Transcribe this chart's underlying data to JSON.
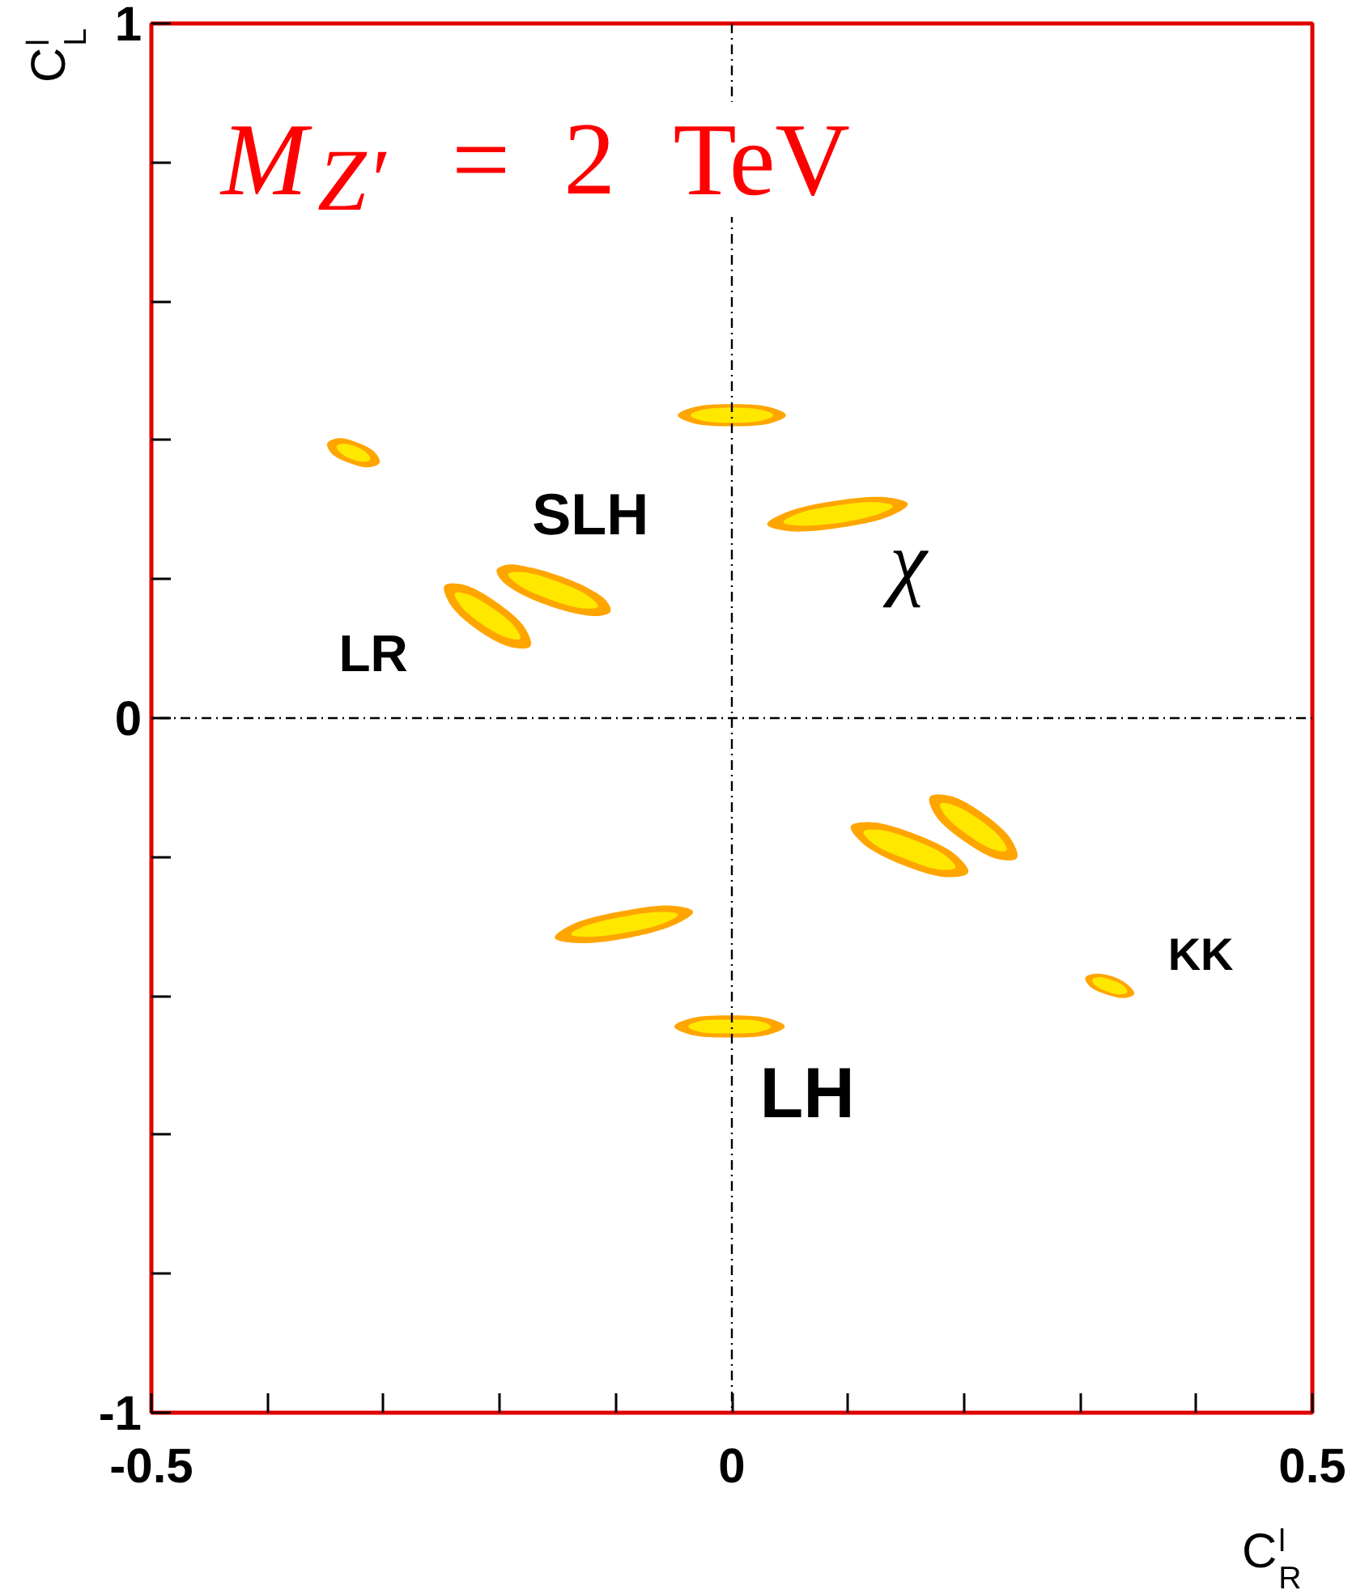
{
  "chart_data": {
    "type": "area",
    "title": "M$_{Z′}$ = 2 TeV",
    "xlabel": "C$^{l}$$_{R}$",
    "ylabel": "C$^{l}$$_{L}$",
    "xlim": [
      -0.5,
      0.5
    ],
    "ylim": [
      -1,
      1
    ],
    "xticks": [
      -0.5,
      {
        "value": -0.4,
        "label": null
      },
      {
        "value": -0.3,
        "label": null
      },
      {
        "value": -0.2,
        "label": null
      },
      {
        "value": -0.1,
        "label": null
      },
      0,
      {
        "value": 0.1,
        "label": null
      },
      {
        "value": 0.2,
        "label": null
      },
      {
        "value": 0.3,
        "label": null
      },
      {
        "value": 0.4,
        "label": null
      },
      0.5
    ],
    "yticks": [
      -1,
      {
        "value": -0.8,
        "label": null
      },
      {
        "value": -0.6,
        "label": null
      },
      {
        "value": -0.4,
        "label": null
      },
      {
        "value": -0.2,
        "label": null
      },
      0,
      {
        "value": 0.2,
        "label": null
      },
      {
        "value": 0.4,
        "label": null
      },
      {
        "value": 0.6,
        "label": null
      },
      {
        "value": 0.8,
        "label": null
      },
      1
    ],
    "ref_lines": [
      {
        "axis": "x",
        "value": 0,
        "color": "#000000",
        "line_style": "dashdot"
      },
      {
        "axis": "y",
        "value": 0,
        "color": "#000000",
        "line_style": "dashdot"
      }
    ],
    "annotations": [
      "SLH",
      "LR",
      "χ",
      "KK",
      "LH"
    ],
    "series": [
      {
        "color": "#ffa500",
        "x": [
          -0.304,
          -0.313,
          -0.329,
          -0.344,
          -0.348,
          -0.339,
          -0.323,
          -0.308
        ],
        "values": [
          0.368,
          0.362,
          0.368,
          0.381,
          0.395,
          0.402,
          0.396,
          0.382
        ]
      },
      {
        "color": "#ffe800",
        "x": [
          -0.312,
          -0.317,
          -0.328,
          -0.337,
          -0.34,
          -0.335,
          -0.324,
          -0.315
        ],
        "values": [
          0.373,
          0.37,
          0.374,
          0.383,
          0.391,
          0.394,
          0.39,
          0.381
        ]
      },
      {
        "color": "#ffa500",
        "x": [
          0.046,
          0.032,
          0.0,
          -0.032,
          -0.046,
          -0.032,
          0.0,
          0.032
        ],
        "values": [
          0.436,
          0.425,
          0.421,
          0.425,
          0.436,
          0.447,
          0.451,
          0.447
        ]
      },
      {
        "color": "#ffe800",
        "x": [
          0.035,
          0.025,
          0.0,
          -0.025,
          -0.035,
          -0.025,
          0.0,
          0.025
        ],
        "values": [
          0.436,
          0.429,
          0.426,
          0.429,
          0.436,
          0.443,
          0.446,
          0.443
        ]
      },
      {
        "color": "#ffa500",
        "x": [
          0.151,
          0.135,
          0.093,
          0.05,
          0.031,
          0.048,
          0.09,
          0.133
        ],
        "values": [
          0.308,
          0.291,
          0.275,
          0.27,
          0.279,
          0.296,
          0.312,
          0.317
        ]
      },
      {
        "color": "#ffe800",
        "x": [
          0.138,
          0.125,
          0.092,
          0.059,
          0.045,
          0.058,
          0.09,
          0.123
        ],
        "values": [
          0.305,
          0.294,
          0.282,
          0.278,
          0.282,
          0.294,
          0.305,
          0.31
        ]
      },
      {
        "color": "#ffa500",
        "x": [
          -0.105,
          -0.114,
          -0.133,
          -0.158,
          -0.182,
          -0.198,
          -0.202,
          -0.193,
          -0.174,
          -0.149,
          -0.125,
          -0.109
        ],
        "values": [
          0.154,
          0.148,
          0.151,
          0.163,
          0.18,
          0.199,
          0.213,
          0.22,
          0.216,
          0.204,
          0.187,
          0.169
        ]
      },
      {
        "color": "#ffe800",
        "x": [
          -0.116,
          -0.129,
          -0.157,
          -0.183,
          -0.192,
          -0.179,
          -0.151,
          -0.125
        ],
        "values": [
          0.161,
          0.159,
          0.172,
          0.192,
          0.207,
          0.209,
          0.196,
          0.176
        ]
      },
      {
        "color": "#ffa500",
        "x": [
          -0.174,
          -0.19,
          -0.219,
          -0.242,
          -0.247,
          -0.231,
          -0.203,
          -0.179
        ],
        "values": [
          0.104,
          0.103,
          0.128,
          0.164,
          0.19,
          0.191,
          0.166,
          0.13
        ]
      },
      {
        "color": "#ffe800",
        "x": [
          -0.183,
          -0.194,
          -0.215,
          -0.233,
          -0.238,
          -0.227,
          -0.206,
          -0.188
        ],
        "values": [
          0.115,
          0.117,
          0.136,
          0.162,
          0.179,
          0.177,
          0.157,
          0.132
        ]
      },
      {
        "color": "#ffa500",
        "x": [
          0.203,
          0.185,
          0.148,
          0.114,
          0.103,
          0.121,
          0.158,
          0.192
        ],
        "values": [
          -0.222,
          -0.228,
          -0.211,
          -0.181,
          -0.156,
          -0.151,
          -0.168,
          -0.197
        ]
      },
      {
        "color": "#ffe800",
        "x": [
          0.192,
          0.178,
          0.15,
          0.123,
          0.114,
          0.128,
          0.156,
          0.183
        ],
        "values": [
          -0.215,
          -0.217,
          -0.202,
          -0.181,
          -0.164,
          -0.162,
          -0.176,
          -0.198
        ]
      },
      {
        "color": "#ffa500",
        "x": [
          0.245,
          0.229,
          0.2,
          0.176,
          0.171,
          0.188,
          0.216,
          0.24
        ],
        "values": [
          -0.201,
          -0.202,
          -0.176,
          -0.14,
          -0.114,
          -0.113,
          -0.138,
          -0.175
        ]
      },
      {
        "color": "#ffe800",
        "x": [
          0.236,
          0.225,
          0.204,
          0.185,
          0.18,
          0.192,
          0.213,
          0.231
        ],
        "values": [
          -0.19,
          -0.188,
          -0.168,
          -0.141,
          -0.124,
          -0.127,
          -0.147,
          -0.173
        ]
      },
      {
        "color": "#ffa500",
        "x": [
          -0.034,
          -0.05,
          -0.091,
          -0.133,
          -0.152,
          -0.136,
          -0.095,
          -0.052
        ],
        "values": [
          -0.279,
          -0.297,
          -0.316,
          -0.323,
          -0.316,
          -0.297,
          -0.279,
          -0.271
        ]
      },
      {
        "color": "#ffe800",
        "x": [
          -0.047,
          -0.06,
          -0.092,
          -0.124,
          -0.138,
          -0.126,
          -0.094,
          -0.062
        ],
        "values": [
          -0.283,
          -0.295,
          -0.308,
          -0.314,
          -0.311,
          -0.3,
          -0.287,
          -0.28
        ]
      },
      {
        "color": "#ffa500",
        "x": [
          0.045,
          0.031,
          -0.002,
          -0.035,
          -0.049,
          -0.035,
          -0.002,
          0.031
        ],
        "values": [
          -0.444,
          -0.455,
          -0.459,
          -0.455,
          -0.444,
          -0.433,
          -0.429,
          -0.433
        ]
      },
      {
        "color": "#ffe800",
        "x": [
          0.033,
          0.023,
          -0.002,
          -0.027,
          -0.037,
          -0.027,
          -0.002,
          0.023
        ],
        "values": [
          -0.444,
          -0.451,
          -0.453,
          -0.451,
          -0.444,
          -0.437,
          -0.435,
          -0.437
        ]
      },
      {
        "color": "#ffa500",
        "x": [
          0.346,
          0.338,
          0.323,
          0.309,
          0.305,
          0.313,
          0.328,
          0.341
        ],
        "values": [
          -0.397,
          -0.402,
          -0.397,
          -0.386,
          -0.374,
          -0.369,
          -0.373,
          -0.385
        ]
      },
      {
        "color": "#ffe800",
        "x": [
          0.34,
          0.334,
          0.324,
          0.314,
          0.311,
          0.316,
          0.327,
          0.337
        ],
        "values": [
          -0.394,
          -0.397,
          -0.393,
          -0.385,
          -0.377,
          -0.374,
          -0.378,
          -0.386
        ]
      }
    ]
  }
}
